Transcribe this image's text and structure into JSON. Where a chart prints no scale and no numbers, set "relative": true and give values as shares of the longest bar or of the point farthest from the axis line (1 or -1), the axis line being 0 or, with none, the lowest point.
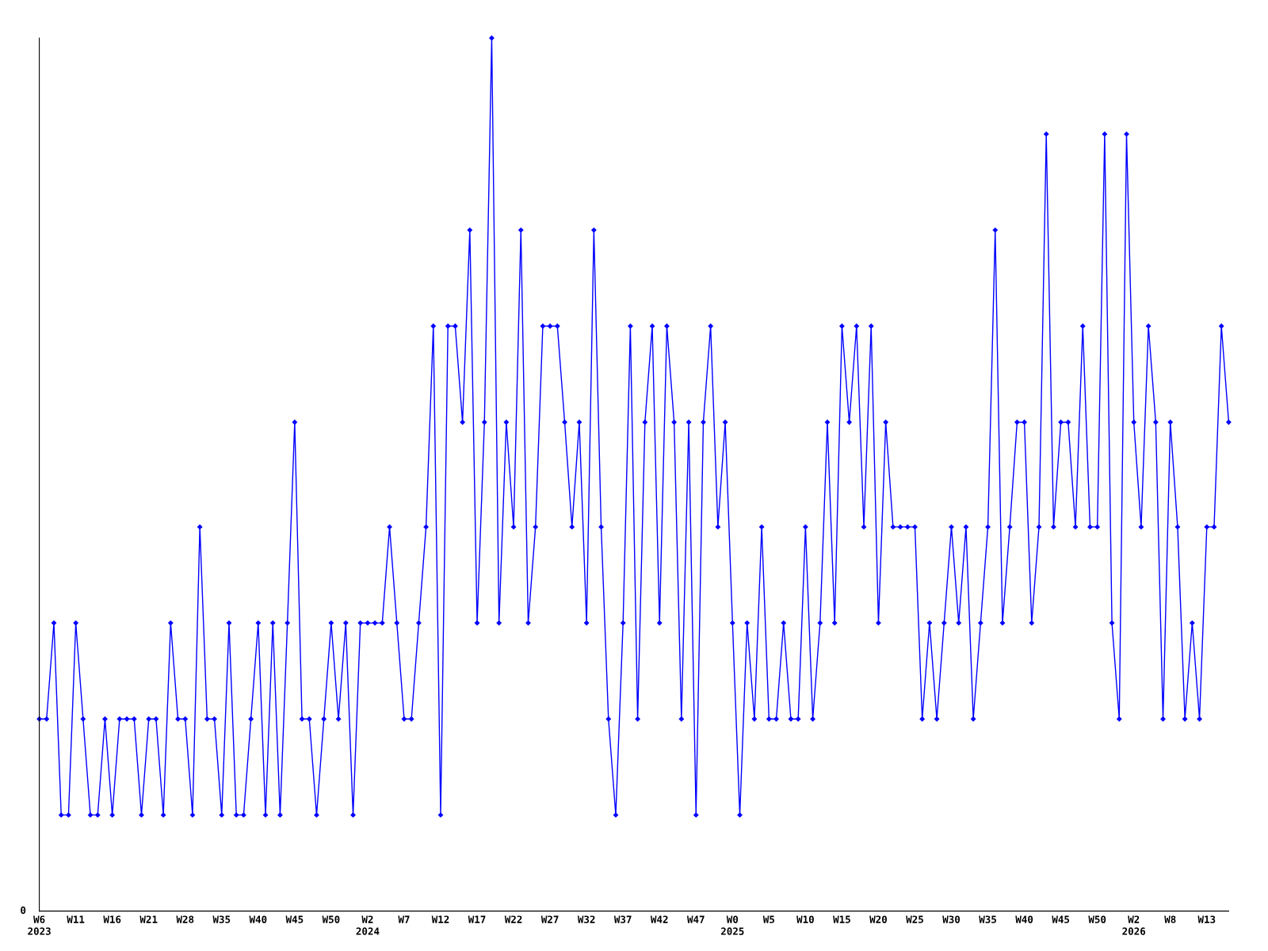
{
  "chart_data": {
    "type": "line",
    "relative": true,
    "color": "#0000ff",
    "marker": "diamond",
    "line_style": "solid",
    "grid": false,
    "legend": false,
    "annotations": [
      "0"
    ],
    "categories": [
      "W6\n2023",
      null,
      null,
      null,
      null,
      "W11",
      null,
      null,
      null,
      null,
      "W16",
      null,
      null,
      null,
      null,
      "W21",
      null,
      null,
      null,
      null,
      "W28",
      null,
      null,
      null,
      null,
      "W35",
      null,
      null,
      null,
      null,
      "W40",
      null,
      null,
      null,
      null,
      "W45",
      null,
      null,
      null,
      null,
      "W50",
      null,
      null,
      null,
      null,
      "W2\n2024",
      null,
      null,
      null,
      null,
      "W7",
      null,
      null,
      null,
      null,
      "W12",
      null,
      null,
      null,
      null,
      "W17",
      null,
      null,
      null,
      null,
      "W22",
      null,
      null,
      null,
      null,
      "W27",
      null,
      null,
      null,
      null,
      "W32",
      null,
      null,
      null,
      null,
      "W37",
      null,
      null,
      null,
      null,
      "W42",
      null,
      null,
      null,
      null,
      "W47",
      null,
      null,
      null,
      null,
      "W0\n2025",
      null,
      null,
      null,
      null,
      "W5",
      null,
      null,
      null,
      null,
      "W10",
      null,
      null,
      null,
      null,
      "W15",
      null,
      null,
      null,
      null,
      "W20",
      null,
      null,
      null,
      null,
      "W25",
      null,
      null,
      null,
      null,
      "W30",
      null,
      null,
      null,
      null,
      "W35",
      null,
      null,
      null,
      null,
      "W40",
      null,
      null,
      null,
      null,
      "W45",
      null,
      null,
      null,
      null,
      "W50",
      null,
      null,
      null,
      null,
      "W2\n2026",
      null,
      null,
      null,
      null,
      "W8",
      null,
      null,
      null,
      null,
      "W13",
      null,
      null,
      null
    ],
    "values": [
      0.22,
      0.22,
      0.33,
      0.11,
      0.11,
      0.33,
      0.22,
      0.11,
      0.11,
      0.22,
      0.11,
      0.22,
      0.22,
      0.22,
      0.11,
      0.22,
      0.22,
      0.11,
      0.33,
      0.22,
      0.22,
      0.11,
      0.44,
      0.22,
      0.22,
      0.11,
      0.33,
      0.11,
      0.11,
      0.22,
      0.33,
      0.11,
      0.33,
      0.11,
      0.33,
      0.56,
      0.22,
      0.22,
      0.11,
      0.22,
      0.33,
      0.22,
      0.33,
      0.11,
      0.33,
      0.33,
      0.33,
      0.33,
      0.44,
      0.33,
      0.22,
      0.22,
      0.33,
      0.44,
      0.67,
      0.11,
      0.67,
      0.67,
      0.56,
      0.78,
      0.33,
      0.56,
      1,
      0.33,
      0.56,
      0.44,
      0.78,
      0.33,
      0.44,
      0.67,
      0.67,
      0.67,
      0.56,
      0.44,
      0.56,
      0.33,
      0.78,
      0.44,
      0.22,
      0.11,
      0.33,
      0.67,
      0.22,
      0.56,
      0.67,
      0.33,
      0.67,
      0.56,
      0.22,
      0.56,
      0.11,
      0.56,
      0.67,
      0.44,
      0.56,
      0.33,
      0.11,
      0.33,
      0.22,
      0.44,
      0.22,
      0.22,
      0.33,
      0.22,
      0.22,
      0.44,
      0.22,
      0.33,
      0.56,
      0.33,
      0.67,
      0.56,
      0.67,
      0.44,
      0.67,
      0.33,
      0.56,
      0.44,
      0.44,
      0.44,
      0.44,
      0.22,
      0.33,
      0.22,
      0.33,
      0.44,
      0.33,
      0.44,
      0.22,
      0.33,
      0.44,
      0.78,
      0.33,
      0.44,
      0.56,
      0.56,
      0.33,
      0.44,
      0.89,
      0.44,
      0.56,
      0.56,
      0.44,
      0.67,
      0.44,
      0.44,
      0.89,
      0.33,
      0.22,
      0.89,
      0.56,
      0.44,
      0.67,
      0.56,
      0.22,
      0.56,
      0.44,
      0.22,
      0.33,
      0.22,
      0.44,
      0.44,
      0.67,
      0.56
    ]
  }
}
